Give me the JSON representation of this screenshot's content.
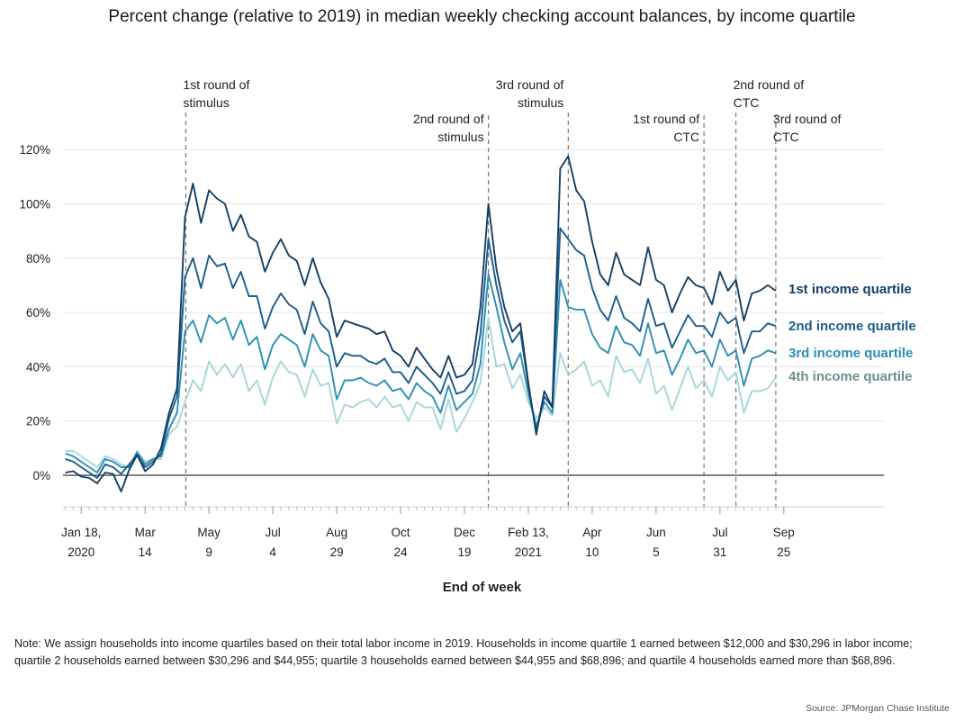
{
  "chart_data": {
    "type": "line",
    "title": "Percent change (relative to 2019) in median weekly checking account balances, by income quartile",
    "xlabel": "End of week",
    "ylabel": "",
    "ylim": [
      -10,
      125
    ],
    "yticks": [
      0,
      20,
      40,
      60,
      80,
      100,
      120
    ],
    "ytick_labels": [
      "0%",
      "20%",
      "40%",
      "60%",
      "80%",
      "100%",
      "120%"
    ],
    "x_start_label": "Jan 18, 2020",
    "x_unit": "weeks",
    "x_range": [
      0,
      90
    ],
    "xticks": [
      {
        "week": 2,
        "line1": "Jan 18,",
        "line2": "2020"
      },
      {
        "week": 10,
        "line1": "Mar",
        "line2": "14"
      },
      {
        "week": 18,
        "line1": "May",
        "line2": "9"
      },
      {
        "week": 26,
        "line1": "Jul",
        "line2": "4"
      },
      {
        "week": 34,
        "line1": "Aug",
        "line2": "29"
      },
      {
        "week": 42,
        "line1": "Oct",
        "line2": "24"
      },
      {
        "week": 50,
        "line1": "Dec",
        "line2": "19"
      },
      {
        "week": 58,
        "line1": "Feb 13,",
        "line2": "2021"
      },
      {
        "week": 66,
        "line1": "Apr",
        "line2": "10"
      },
      {
        "week": 74,
        "line1": "Jun",
        "line2": "5"
      },
      {
        "week": 82,
        "line1": "Jul",
        "line2": "31"
      },
      {
        "week": 90,
        "line1": "Sep",
        "line2": "25"
      }
    ],
    "annotations": [
      {
        "week": 15.1,
        "line1": "1st round of",
        "line2": "stimulus",
        "align": "start",
        "level": "high"
      },
      {
        "week": 53.0,
        "line1": "2nd round of",
        "line2": "stimulus",
        "align": "end",
        "level": "low"
      },
      {
        "week": 63.0,
        "line1": "3rd round of",
        "line2": "stimulus",
        "align": "end",
        "level": "high"
      },
      {
        "week": 80.0,
        "line1": "1st round of",
        "line2": "CTC",
        "align": "end",
        "level": "low"
      },
      {
        "week": 84.0,
        "line1": "2nd round of",
        "line2": "CTC",
        "align": "start",
        "level": "high"
      },
      {
        "week": 89.0,
        "line1": "3rd round of",
        "line2": "CTC",
        "align": "start",
        "level": "low"
      }
    ],
    "series": [
      {
        "name": "1st income quartile",
        "color": "#163f66",
        "label_color": "#163f66",
        "values": [
          1,
          1.5,
          -0.5,
          -1,
          -3,
          1,
          0.5,
          -6,
          2,
          7.5,
          1.5,
          4,
          10,
          23,
          32,
          95,
          107.5,
          93,
          105,
          102,
          100,
          90,
          96,
          88,
          86,
          75,
          82,
          87,
          81,
          79,
          70,
          80,
          71,
          65,
          51,
          57,
          56,
          55,
          54,
          52,
          53,
          46,
          44,
          40,
          47,
          43,
          39,
          36,
          44,
          36,
          37,
          41,
          62,
          100,
          76,
          62,
          53,
          56,
          34,
          15,
          31,
          25,
          113,
          117.5,
          105,
          101,
          86,
          74,
          70,
          82,
          74,
          72,
          70,
          84,
          72,
          70,
          60,
          67,
          73,
          70,
          69,
          63,
          75,
          68,
          72,
          57,
          67,
          68,
          70,
          68
        ]
      },
      {
        "name": "2nd income quartile",
        "color": "#1c5d8a",
        "label_color": "#1c5d8a",
        "values": [
          6,
          5,
          3,
          1,
          -1,
          4,
          3,
          0.5,
          4,
          7.5,
          3,
          5,
          8,
          21,
          29,
          73,
          80,
          69,
          81,
          77,
          78,
          69,
          75,
          66,
          66,
          54,
          62,
          67,
          63,
          61,
          52,
          64,
          56,
          53,
          40,
          45,
          44,
          44,
          42,
          41,
          43,
          38,
          38,
          34,
          40,
          37,
          34,
          30,
          38,
          30,
          31,
          35,
          52,
          87,
          70,
          57,
          49,
          53,
          33,
          16,
          29,
          25,
          91,
          87,
          83,
          81,
          69,
          61,
          57,
          66,
          58,
          56,
          53,
          65,
          55,
          56,
          47,
          53,
          59,
          55,
          55,
          51,
          60,
          56,
          58,
          45,
          53,
          53,
          56,
          55
        ]
      },
      {
        "name": "3rd income quartile",
        "color": "#2c8fb5",
        "label_color": "#2c8fb5",
        "values": [
          8,
          7,
          5,
          3,
          1,
          6,
          5,
          3,
          3,
          8.5,
          4,
          6,
          7,
          17,
          23,
          53,
          57,
          49,
          59,
          56,
          58,
          50,
          57,
          48,
          51,
          39,
          48,
          52,
          50,
          48,
          40,
          52,
          46,
          44,
          28,
          35,
          35,
          36,
          34,
          33,
          35,
          31,
          32,
          28,
          34,
          31,
          29,
          23,
          33,
          24,
          27,
          30,
          41,
          74,
          62,
          49,
          39,
          45,
          30,
          18,
          27,
          23,
          72,
          62,
          61,
          61,
          52,
          47,
          45,
          55,
          49,
          48,
          44,
          56,
          45,
          46,
          37,
          43,
          50,
          45,
          46,
          40,
          50,
          44,
          46,
          33,
          43,
          44,
          46,
          45
        ]
      },
      {
        "name": "4th income quartile",
        "color": "#a6d6da",
        "label_color": "#6b8e8e",
        "values": [
          9,
          9,
          7,
          5,
          3,
          7,
          6,
          4,
          3,
          9,
          5,
          6,
          6,
          15,
          18,
          27,
          35,
          31,
          42,
          37,
          41,
          36,
          41,
          31,
          35,
          26,
          36,
          42,
          38,
          37,
          29,
          39,
          33,
          34,
          19,
          26,
          25,
          27,
          28,
          25,
          29,
          25,
          26,
          20,
          27,
          25,
          25,
          17,
          28,
          16,
          21,
          27,
          34,
          58,
          40,
          41,
          32,
          37,
          27,
          21,
          25,
          22,
          45,
          37,
          39,
          42,
          33,
          35,
          29,
          44,
          38,
          39,
          34,
          43,
          30,
          33,
          24,
          32,
          40,
          32,
          35,
          29,
          40,
          35,
          38,
          23,
          31,
          31,
          32,
          36
        ]
      }
    ]
  },
  "note": "Note: We assign households into income quartiles based on their total labor income in 2019. Households in income quartile 1 earned between $12,000 and $30,296 in labor income; quartile 2 households earned between $30,296 and $44,955; quartile 3 households earned between $44,955 and $68,896; and quartile 4 households earned more than $68,896.",
  "source": "Source: JPMorgan Chase Institute"
}
